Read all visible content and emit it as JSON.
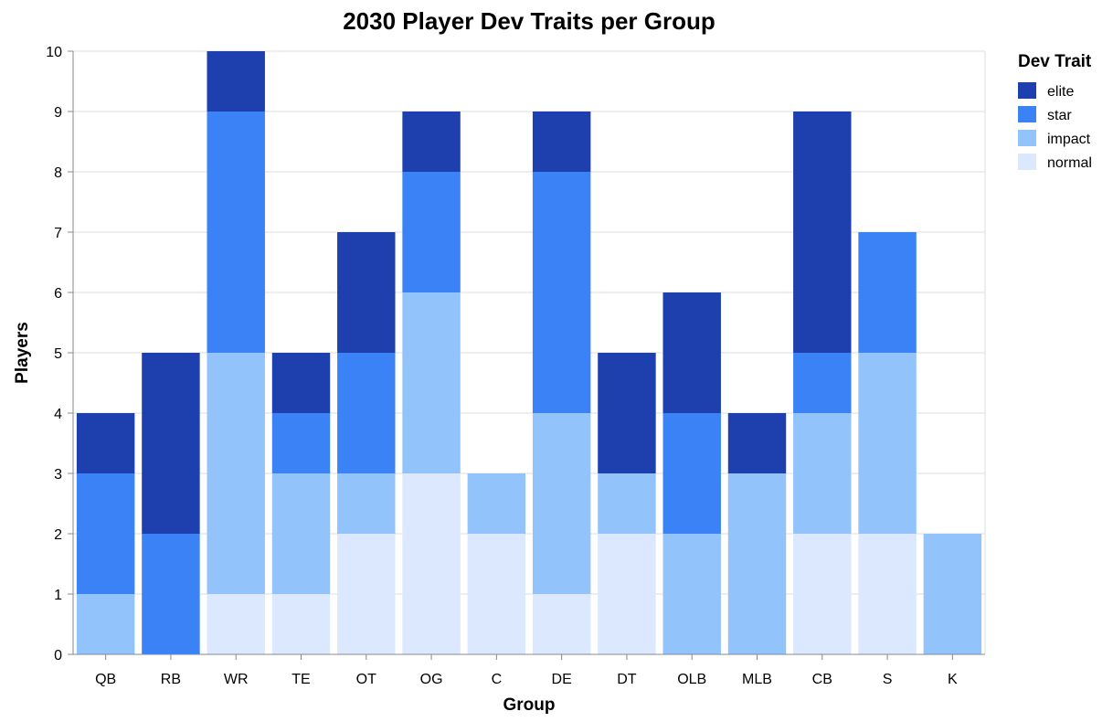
{
  "chart_data": {
    "type": "bar",
    "stacked": true,
    "title": "2030 Player Dev Traits per Group",
    "xlabel": "Group",
    "ylabel": "Players",
    "ylim": [
      0,
      10
    ],
    "yticks": [
      0,
      1,
      2,
      3,
      4,
      5,
      6,
      7,
      8,
      9,
      10
    ],
    "grid": true,
    "legend": {
      "title": "Dev Trait",
      "position": "right"
    },
    "categories": [
      "QB",
      "RB",
      "WR",
      "TE",
      "OT",
      "OG",
      "C",
      "DE",
      "DT",
      "OLB",
      "MLB",
      "CB",
      "S",
      "K"
    ],
    "series": [
      {
        "name": "normal",
        "color": "#dbe8fd",
        "values": [
          0,
          0,
          1,
          1,
          2,
          3,
          2,
          1,
          2,
          0,
          0,
          2,
          2,
          0
        ]
      },
      {
        "name": "impact",
        "color": "#93c3fb",
        "values": [
          1,
          0,
          4,
          2,
          1,
          3,
          1,
          3,
          1,
          2,
          3,
          2,
          3,
          2
        ]
      },
      {
        "name": "star",
        "color": "#3b82f6",
        "values": [
          2,
          2,
          4,
          1,
          2,
          2,
          0,
          4,
          0,
          2,
          0,
          1,
          2,
          0
        ]
      },
      {
        "name": "elite",
        "color": "#1e40af",
        "values": [
          1,
          3,
          1,
          1,
          2,
          1,
          0,
          1,
          2,
          2,
          1,
          4,
          0,
          0
        ]
      }
    ],
    "legend_order": [
      "elite",
      "star",
      "impact",
      "normal"
    ]
  }
}
